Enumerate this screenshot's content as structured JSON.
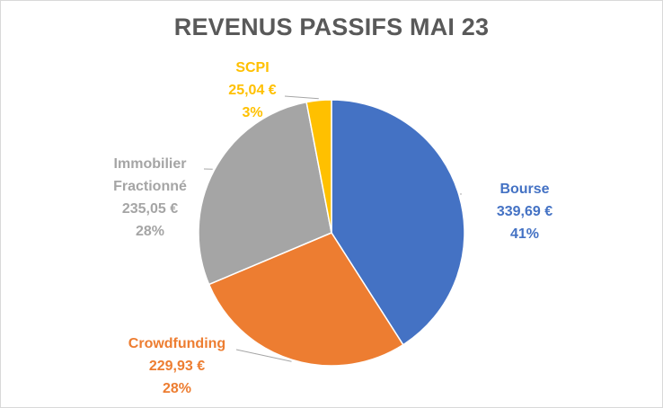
{
  "chart_data": {
    "type": "pie",
    "title": "REVENUS PASSIFS MAI 23",
    "slices": [
      {
        "label": "Bourse",
        "value": 339.69,
        "value_text": "339,69 €",
        "percent_text": "41%",
        "color": "#4472C4"
      },
      {
        "label": "Crowdfunding",
        "value": 229.93,
        "value_text": "229,93 €",
        "percent_text": "28%",
        "color": "#ED7D31"
      },
      {
        "label": "Immobilier Fractionné",
        "label_lines": [
          "Immobilier",
          "Fractionné"
        ],
        "value": 235.05,
        "value_text": "235,05 €",
        "percent_text": "28%",
        "color": "#A5A5A5"
      },
      {
        "label": "SCPI",
        "value": 25.04,
        "value_text": "25,04 €",
        "percent_text": "3%",
        "color": "#FFC000"
      }
    ],
    "legend": "none",
    "label_position": "outside-with-leader-lines"
  }
}
